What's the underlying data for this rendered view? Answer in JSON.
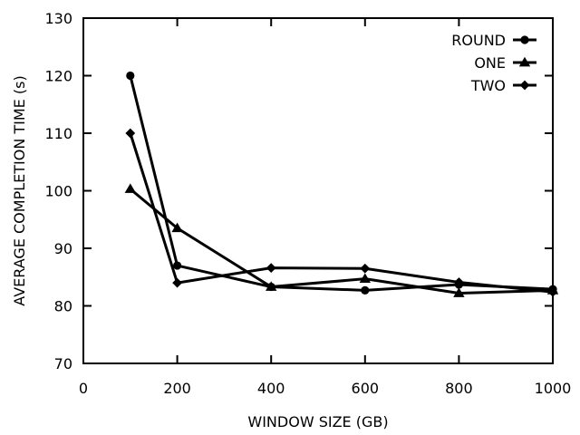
{
  "chart_data": {
    "type": "line",
    "title": "",
    "xlabel": "WINDOW SIZE (GB)",
    "ylabel": "AVERAGE COMPLETION TIME (s)",
    "xlim": [
      0,
      1000
    ],
    "ylim": [
      70,
      130
    ],
    "xticks": [
      0,
      200,
      400,
      600,
      800,
      1000
    ],
    "yticks": [
      70,
      80,
      90,
      100,
      110,
      120,
      130
    ],
    "grid": false,
    "legend_position": "top-right",
    "x": [
      100,
      200,
      400,
      600,
      800,
      1000
    ],
    "series": [
      {
        "name": "ROUND",
        "marker": "circle",
        "color": "#000000",
        "values": [
          120,
          87,
          83.3,
          82.7,
          83.7,
          82.9
        ]
      },
      {
        "name": "ONE",
        "marker": "triangle",
        "color": "#000000",
        "values": [
          100.3,
          93.5,
          83.3,
          84.7,
          82.2,
          82.7
        ]
      },
      {
        "name": "TWO",
        "marker": "diamond",
        "color": "#000000",
        "values": [
          110,
          84,
          86.6,
          86.5,
          84.1,
          82.4
        ]
      }
    ]
  }
}
